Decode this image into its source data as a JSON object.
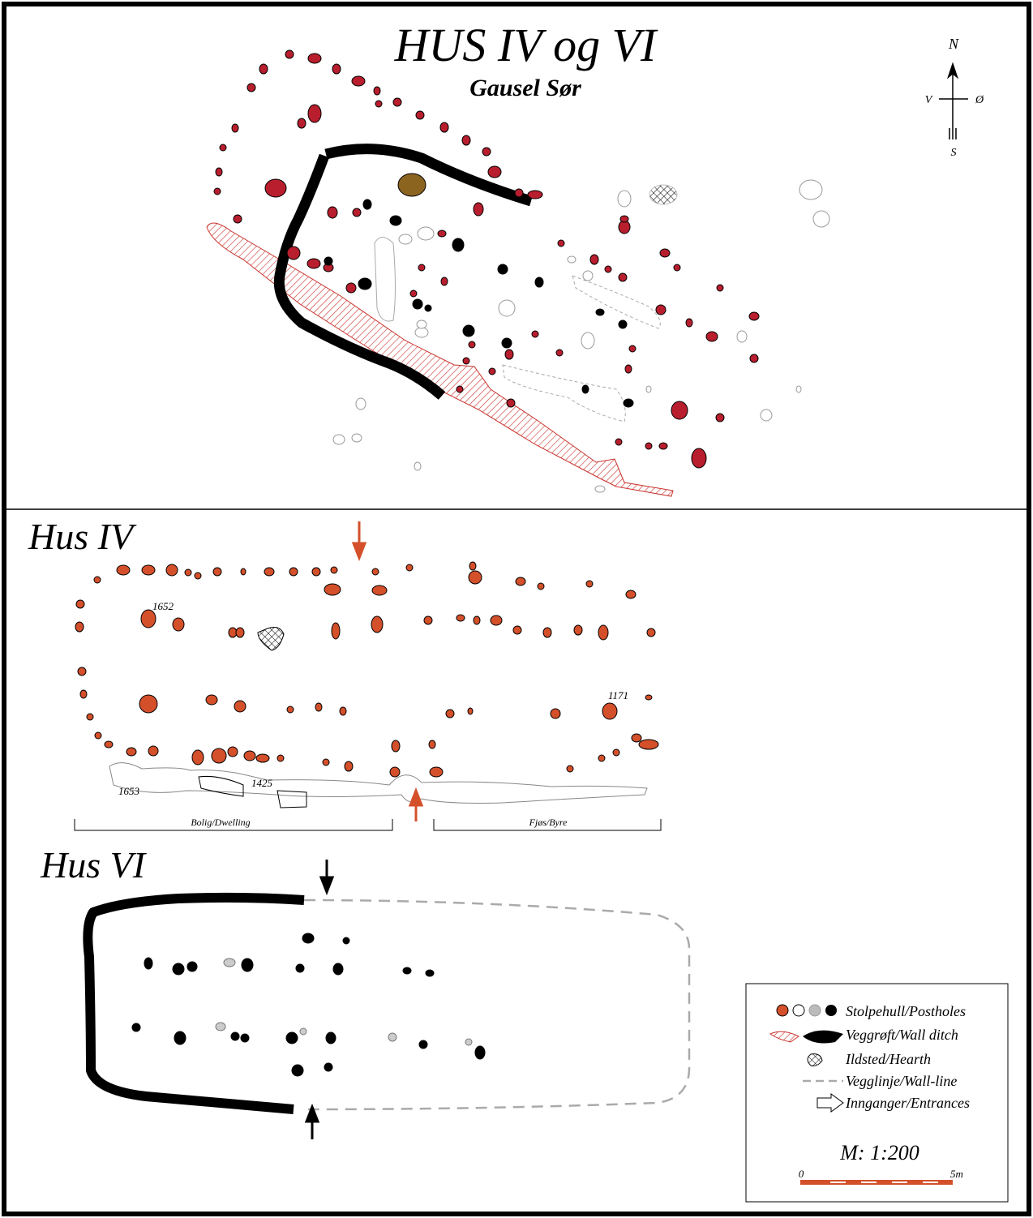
{
  "header": {
    "title": "HUS IV og VI",
    "subtitle": "Gausel Sør"
  },
  "compass": {
    "north": "N",
    "west": "V",
    "east": "Ø",
    "south": "S"
  },
  "hus_iv": {
    "label": "Hus IV",
    "feature_labels": [
      "1652",
      "1171",
      "1653",
      "1425"
    ],
    "zones": [
      "Bolig/Dwelling",
      "Fjøs/Byre"
    ]
  },
  "hus_vi": {
    "label": "Hus VI"
  },
  "legend": {
    "items": [
      "Stolpehull/Postholes",
      "Veggrøft/Wall ditch",
      "Ildsted/Hearth",
      "Vegglinje/Wall-line",
      "Innganger/Entrances"
    ],
    "scale": "M: 1:200",
    "scale_start": "0",
    "scale_end": "5m"
  }
}
